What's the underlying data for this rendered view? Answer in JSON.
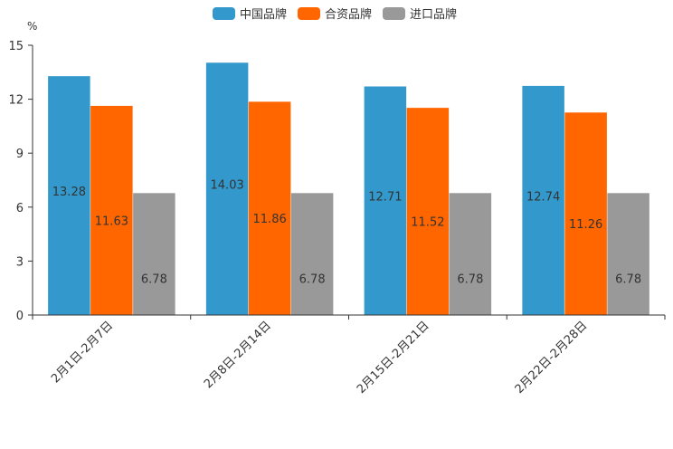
{
  "chart_data": {
    "type": "bar",
    "unit": "%",
    "categories": [
      "2月1日-2月7日",
      "2月8日-2月14日",
      "2月15日-2月21日",
      "2月22日-2月28日"
    ],
    "series": [
      {
        "name": "中国品牌",
        "color": "#3399cc",
        "values": [
          13.28,
          14.03,
          12.71,
          12.74
        ],
        "labels": [
          "13.28",
          "14.03",
          "12.71",
          "12.74"
        ]
      },
      {
        "name": "合资品牌",
        "color": "#ff6600",
        "values": [
          11.63,
          11.86,
          11.52,
          11.26
        ],
        "labels": [
          "11.63",
          "11.86",
          "11.52",
          "11.26"
        ]
      },
      {
        "name": "进口品牌",
        "color": "#999999",
        "values": [
          6.78,
          6.78,
          6.78,
          6.78
        ],
        "labels": [
          "6.78",
          "6.78",
          "6.78",
          "6.78"
        ]
      }
    ],
    "ylim": [
      0,
      15
    ],
    "yticks": [
      0,
      3,
      6,
      9,
      12,
      15
    ],
    "ytick_labels": [
      "0",
      "3",
      "6",
      "9",
      "12",
      "15"
    ],
    "legend_position": "top-center",
    "grid": false
  }
}
